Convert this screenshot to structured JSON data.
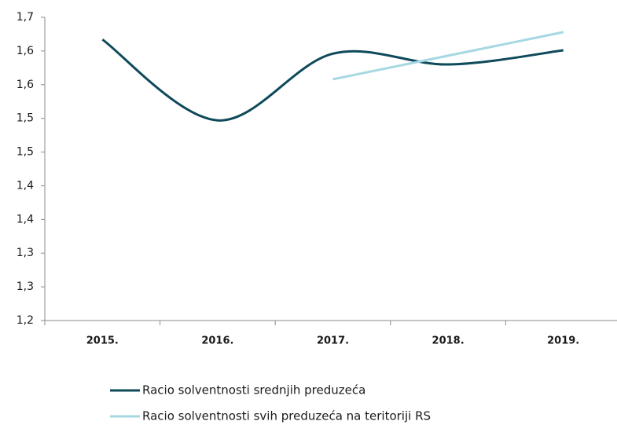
{
  "chart_data": {
    "type": "line",
    "categories": [
      "2015.",
      "2016.",
      "2017.",
      "2018.",
      "2019."
    ],
    "series": [
      {
        "name": "Racio solventnosti srednjih preduzeća",
        "color": "#0e4a5a",
        "values": [
          1.617,
          1.497,
          1.596,
          1.58,
          1.601
        ]
      },
      {
        "name": "Racio solventnosti svih preduzeća na teritoriji RS",
        "color": "#a5d8e2",
        "values": [
          null,
          null,
          1.558,
          1.593,
          1.628
        ]
      }
    ],
    "ylim": [
      1.2,
      1.65
    ],
    "yticks": [
      {
        "value": 1.2,
        "label": "1,2"
      },
      {
        "value": 1.25,
        "label": "1,3"
      },
      {
        "value": 1.3,
        "label": "1,3"
      },
      {
        "value": 1.35,
        "label": "1,4"
      },
      {
        "value": 1.4,
        "label": "1,4"
      },
      {
        "value": 1.45,
        "label": "1,5"
      },
      {
        "value": 1.5,
        "label": "1,5"
      },
      {
        "value": 1.55,
        "label": "1,6"
      },
      {
        "value": 1.6,
        "label": "1,6"
      },
      {
        "value": 1.65,
        "label": "1,7"
      }
    ],
    "legend": "bottom"
  }
}
